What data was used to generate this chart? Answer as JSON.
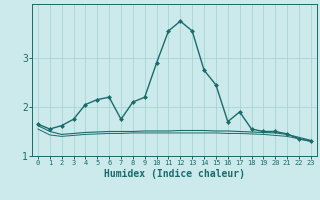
{
  "xlabel": "Humidex (Indice chaleur)",
  "ylabel": "",
  "background_color": "#cceaeb",
  "grid_color": "#aad4d6",
  "line_color": "#1a6b6b",
  "x": [
    0,
    1,
    2,
    3,
    4,
    5,
    6,
    7,
    8,
    9,
    10,
    11,
    12,
    13,
    14,
    15,
    16,
    17,
    18,
    19,
    20,
    21,
    22,
    23
  ],
  "line1": [
    1.65,
    1.55,
    1.62,
    1.75,
    2.05,
    2.15,
    2.2,
    1.75,
    2.1,
    2.2,
    2.9,
    3.55,
    3.75,
    3.55,
    2.75,
    2.45,
    1.7,
    1.9,
    1.55,
    1.5,
    1.5,
    1.45,
    1.35,
    1.3
  ],
  "line2": [
    1.62,
    1.5,
    1.44,
    1.46,
    1.48,
    1.49,
    1.5,
    1.5,
    1.5,
    1.51,
    1.51,
    1.51,
    1.52,
    1.52,
    1.52,
    1.51,
    1.51,
    1.5,
    1.49,
    1.48,
    1.47,
    1.44,
    1.38,
    1.32
  ],
  "line3": [
    1.55,
    1.43,
    1.4,
    1.42,
    1.44,
    1.45,
    1.46,
    1.46,
    1.47,
    1.47,
    1.47,
    1.47,
    1.47,
    1.47,
    1.47,
    1.47,
    1.46,
    1.46,
    1.45,
    1.44,
    1.42,
    1.4,
    1.35,
    1.3
  ],
  "ylim": [
    1.0,
    4.1
  ],
  "yticks": [
    1,
    2,
    3
  ],
  "xticks": [
    0,
    1,
    2,
    3,
    4,
    5,
    6,
    7,
    8,
    9,
    10,
    11,
    12,
    13,
    14,
    15,
    16,
    17,
    18,
    19,
    20,
    21,
    22,
    23
  ],
  "marker": "D",
  "markersize": 2.5,
  "linewidth1": 1.0,
  "linewidth2": 0.8,
  "linewidth3": 0.7
}
